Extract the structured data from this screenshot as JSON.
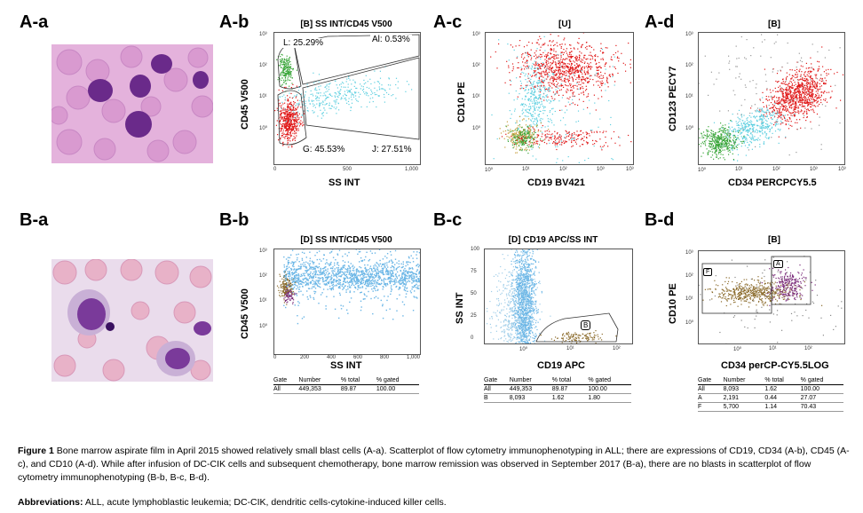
{
  "panels": {
    "Aa": {
      "label": "A-a"
    },
    "Ab": {
      "label": "A-b",
      "title": "[B] SS INT/CD45 V500",
      "ylabel": "CD45 V500",
      "xlabel": "SS INT",
      "gates": {
        "L": "L: 25.29%",
        "Al": "Al: 0.53%",
        "G": "G: 45.53%",
        "J": "J: 27.51%"
      },
      "xticks": [
        "0",
        "500",
        "1,000"
      ]
    },
    "Ac": {
      "label": "A-c",
      "title": "[U]",
      "ylabel": "CD10 PE",
      "xlabel": "CD19 BV421"
    },
    "Ad": {
      "label": "A-d",
      "title": "[B]",
      "ylabel": "CD123 PECY7",
      "xlabel": "CD34 PERCPCY5.5"
    },
    "Ba": {
      "label": "B-a"
    },
    "Bb": {
      "label": "B-b",
      "title": "[D] SS INT/CD45 V500",
      "ylabel": "CD45 V500",
      "xlabel": "SS INT",
      "xticks": [
        "0",
        "200",
        "400",
        "600",
        "800",
        "1,000"
      ]
    },
    "Bc": {
      "label": "B-c",
      "title": "[D] CD19 APC/SS INT",
      "ylabel": "SS INT",
      "xlabel": "CD19 APC",
      "gate": "B",
      "yticks": [
        "100",
        "75",
        "50",
        "25",
        "0"
      ]
    },
    "Bd": {
      "label": "B-d",
      "title": "[B]",
      "ylabel": "CD10 PE",
      "xlabel": "CD34 perCP-CY5.5LOG",
      "gateF": "F",
      "gateA": "A"
    }
  },
  "tables": {
    "Bb": {
      "headers": [
        "Gate",
        "Number",
        "% total",
        "% gated"
      ],
      "rows": [
        [
          "All",
          "449,353",
          "89.87",
          "100.00"
        ]
      ]
    },
    "Bc": {
      "headers": [
        "Gate",
        "Number",
        "% total",
        "% gated"
      ],
      "rows": [
        [
          "All",
          "449,353",
          "89.87",
          "100.00"
        ],
        [
          "B",
          "8,093",
          "1.62",
          "1.80"
        ]
      ]
    },
    "Bd": {
      "headers": [
        "Gate",
        "Number",
        "% total",
        "% gated"
      ],
      "rows": [
        [
          "All",
          "8,093",
          "1.62",
          "100.00"
        ],
        [
          "A",
          "2,191",
          "0.44",
          "27.07"
        ],
        [
          "F",
          "5,700",
          "1.14",
          "70.43"
        ]
      ]
    }
  },
  "log_ticks": [
    "10⁰",
    "10¹",
    "10²",
    "10³"
  ],
  "caption": {
    "figure_label": "Figure 1",
    "text": "Bone marrow aspirate film in April 2015 showed relatively small blast cells (A-a). Scatterplot of flow cytometry immunophenotyping in ALL; there are expressions of CD19, CD34 (A-b), CD45 (A-c), and CD10 (A-d). While after infusion of DC-CIK cells and subsequent chemotherapy, bone marrow remission was observed in September 2017 (B-a), there are no blasts in scatterplot of flow cytometry immunophenotyping (B-b, B-c, B-d).",
    "abbr_label": "Abbreviations:",
    "abbr_text": "ALL, acute lymphoblastic leukemia; DC-CIK, dendritic cells-cytokine-induced killer cells."
  },
  "colors": {
    "red": "#e01818",
    "cyan": "#5ecfe0",
    "green": "#3aa63a",
    "blue": "#6bb6e6",
    "brown": "#8a6a2a",
    "purple": "#7a2a7a",
    "stain_bg": "#e2a9d8"
  }
}
